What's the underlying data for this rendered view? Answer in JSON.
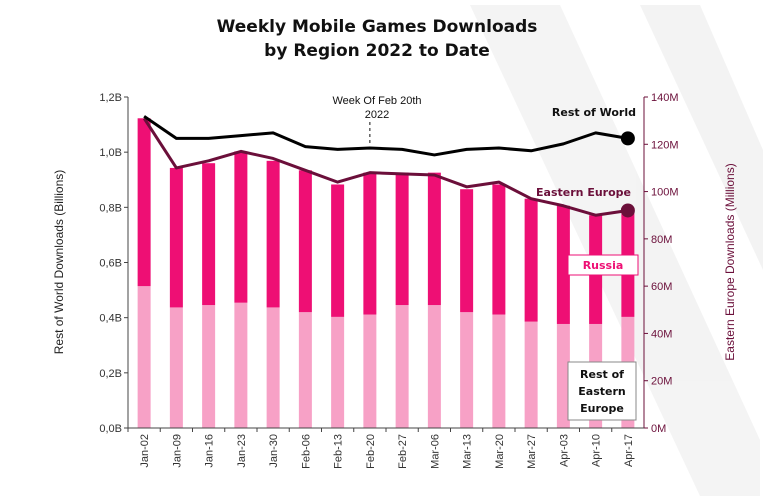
{
  "chart_data": {
    "type": "bar",
    "title": "Weekly Mobile Games Downloads",
    "subtitle": "by Region 2022 to Date",
    "categories": [
      "Jan-02",
      "Jan-09",
      "Jan-16",
      "Jan-23",
      "Jan-30",
      "Feb-06",
      "Feb-13",
      "Feb-20",
      "Feb-27",
      "Mar-06",
      "Mar-13",
      "Mar-20",
      "Mar-27",
      "Apr-03",
      "Apr-10",
      "Apr-17"
    ],
    "y_left": {
      "label": "Rest of World Downloads (Billions)",
      "range": [
        0,
        1.2
      ],
      "ticks": [
        "0,0B",
        "0,2B",
        "0,4B",
        "0,6B",
        "0,8B",
        "1,0B",
        "1,2B"
      ]
    },
    "y_right": {
      "label": "Eastern Europe  Downloads (Millions)",
      "range": [
        0,
        140
      ],
      "ticks": [
        "0M",
        "20M",
        "40M",
        "60M",
        "80M",
        "100M",
        "120M",
        "140M"
      ]
    },
    "series": [
      {
        "name": "Rest of Eastern Europe",
        "type": "bar-stacked",
        "axis": "right",
        "color": "#f7a1c6",
        "values": [
          60,
          51,
          52,
          53,
          51,
          49,
          47,
          48,
          52,
          52,
          49,
          48,
          45,
          44,
          44,
          47
        ]
      },
      {
        "name": "Russia",
        "type": "bar-stacked",
        "axis": "right",
        "color": "#ee0f74",
        "values": [
          71,
          59,
          60,
          64,
          62,
          60,
          56,
          60,
          56,
          56,
          52,
          55,
          52,
          50,
          46,
          46
        ]
      },
      {
        "name": "Eastern Europe",
        "type": "line",
        "axis": "right",
        "color": "#6b0f3a",
        "values": [
          131,
          110,
          113,
          117,
          114,
          109,
          104,
          108,
          107.5,
          107,
          102,
          104,
          97,
          94,
          90,
          92
        ]
      },
      {
        "name": "Rest of World",
        "type": "line",
        "axis": "left",
        "color": "#000000",
        "values": [
          1.13,
          1.05,
          1.05,
          1.06,
          1.07,
          1.02,
          1.01,
          1.015,
          1.01,
          0.99,
          1.01,
          1.015,
          1.005,
          1.03,
          1.07,
          1.05
        ]
      }
    ],
    "labels": {
      "rest_of_world": "Rest of World",
      "eastern_europe": "Eastern Europe",
      "russia": "Russia",
      "rest_ee_1": "Rest of",
      "rest_ee_2": "Eastern",
      "rest_ee_3": "Europe"
    },
    "annotation": {
      "line1": "Week Of Feb 20th",
      "line2": "2022",
      "category": "Feb-20"
    },
    "grid": false,
    "legend": "inline"
  }
}
